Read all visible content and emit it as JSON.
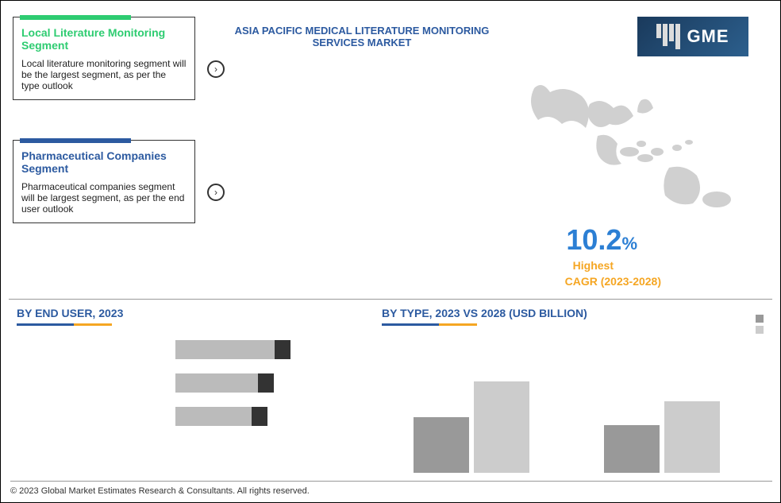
{
  "title": "ASIA PACIFIC MEDICAL LITERATURE MONITORING SERVICES MARKET",
  "logo": {
    "text": "GME"
  },
  "box1": {
    "accent_color": "#2ecc71",
    "title": "Local Literature Monitoring Segment",
    "body": "Local literature monitoring segment will be the largest segment, as per the type outlook"
  },
  "box2": {
    "accent_color": "#2c5aa0",
    "title": "Pharmaceutical Companies Segment",
    "body": "Pharmaceutical companies segment will be largest segment, as per the end user outlook"
  },
  "cagr": {
    "value": "10.2",
    "pct": "%",
    "label1": "Highest",
    "label2": "CAGR (2023-2028)",
    "value_color": "#2c7fd4",
    "label_color": "#f5a623"
  },
  "chart_left": {
    "title": "BY END USER, 2023",
    "type": "bar-horizontal",
    "bars": [
      {
        "width_pct": 78
      },
      {
        "width_pct": 65
      },
      {
        "width_pct": 60
      }
    ],
    "bar_color": "#bbbbbb",
    "cap_color": "#333333",
    "title_color": "#2c5aa0"
  },
  "chart_right": {
    "title": "BY TYPE, 2023 VS 2028 (USD BILLION)",
    "type": "bar-grouped",
    "groups": [
      {
        "a": 70,
        "b": 115
      },
      {
        "a": 60,
        "b": 90
      }
    ],
    "color_a": "#999999",
    "color_b": "#cccccc",
    "title_color": "#2c5aa0",
    "max_height": 140
  },
  "legend": {
    "items": [
      {
        "color": "#999999",
        "label": ""
      },
      {
        "color": "#cccccc",
        "label": ""
      }
    ]
  },
  "copyright": "© 2023 Global Market Estimates Research & Consultants. All rights reserved."
}
